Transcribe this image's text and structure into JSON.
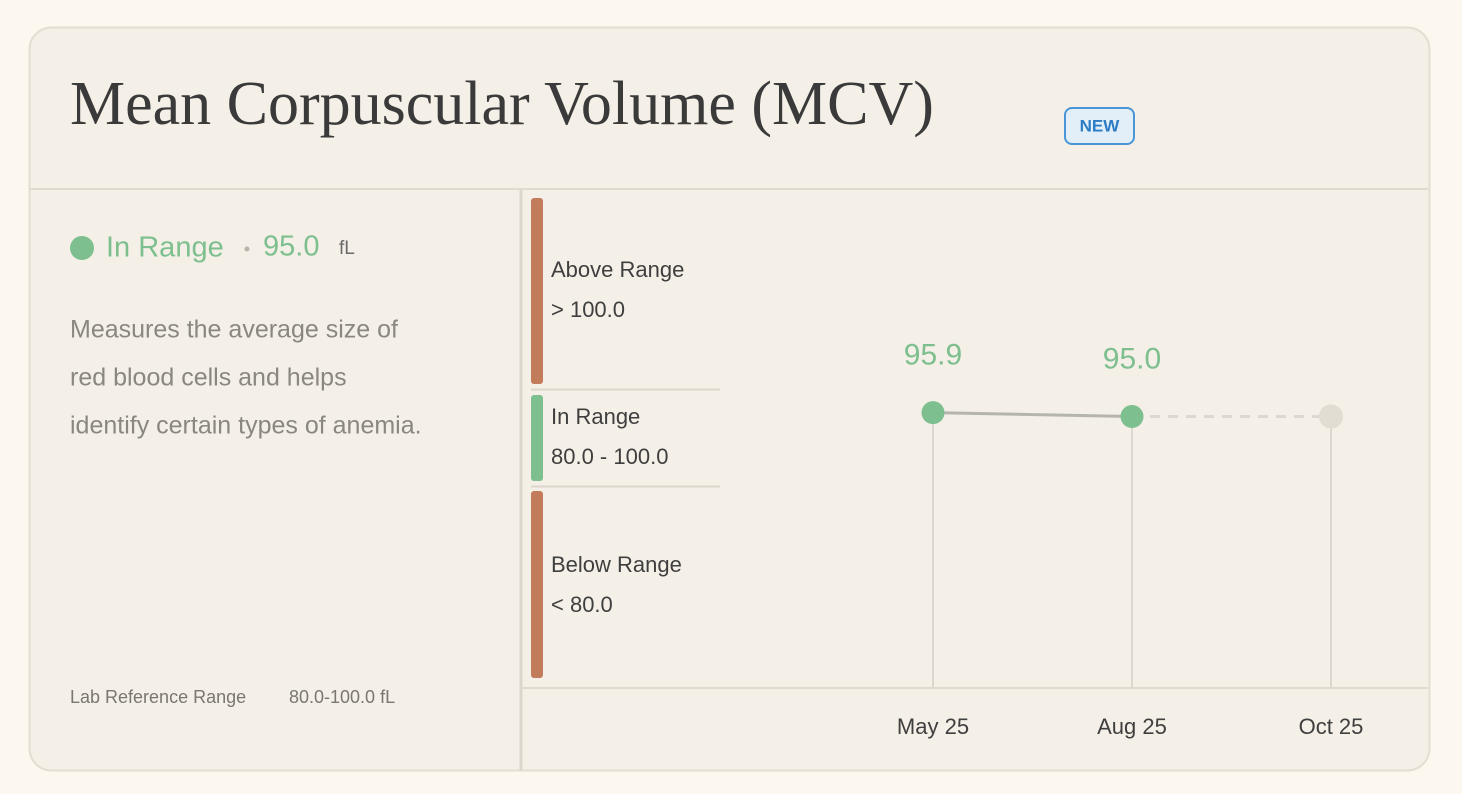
{
  "header": {
    "title": "Mean Corpuscular Volume (MCV)",
    "badge": "NEW"
  },
  "summary": {
    "status": "In Range",
    "value": "95.0",
    "unit": "fL",
    "description": [
      "Measures the average size of",
      "red blood cells and helps",
      "identify certain types of anemia."
    ],
    "reference_label": "Lab Reference Range",
    "reference_value": "80.0-100.0 fL"
  },
  "ranges": [
    {
      "name": "Above Range",
      "label": "> 100.0",
      "color": "#c27c5c"
    },
    {
      "name": "In Range",
      "label": "80.0 - 100.0",
      "color": "#7dbf8e"
    },
    {
      "name": "Below Range",
      "label": "< 80.0",
      "color": "#c27c5c"
    }
  ],
  "chart_data": {
    "type": "line",
    "categories": [
      "May 25",
      "Aug 25",
      "Oct 25"
    ],
    "values": [
      95.9,
      95.0,
      null
    ],
    "value_labels": [
      "95.9",
      "95.0",
      null
    ],
    "color": "#7dbf8e",
    "ylim": [
      80,
      100
    ]
  }
}
